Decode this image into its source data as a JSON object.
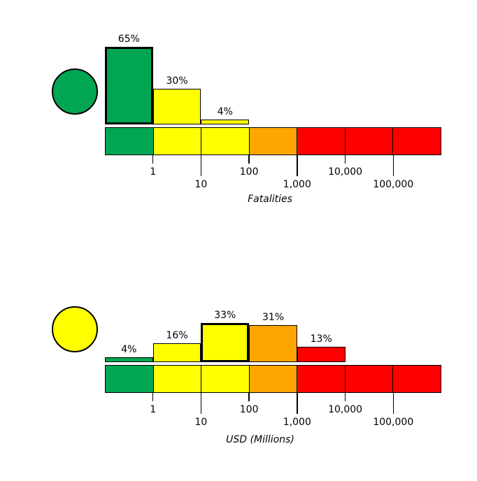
{
  "figure": {
    "background": "#ffffff"
  },
  "colors": {
    "green": "#00a651",
    "yellow": "#ffff00",
    "orange": "#ffa500",
    "red": "#ff0000",
    "outline": "#000000"
  },
  "chart_data": [
    {
      "type": "bar",
      "panel": "fatalities",
      "xlabel": "Fatalities",
      "x_scale": "log10",
      "x_tick_labels": [
        "1",
        "10",
        "100",
        "1,000",
        "10,000",
        "100,000"
      ],
      "bins": [
        "<1",
        "1-10",
        "10-100",
        "100-1,000",
        "1,000-10,000",
        "10,000-100,000",
        ">100,000"
      ],
      "values_percent": [
        65,
        30,
        4,
        0,
        0,
        0,
        0
      ],
      "bar_labels": [
        "65%",
        "30%",
        "4%",
        "",
        "",
        "",
        ""
      ],
      "bar_colors": [
        "green",
        "yellow",
        "yellow",
        null,
        null,
        null,
        null
      ],
      "highlighted_bin": 0,
      "colorbar_colors": [
        "green",
        "yellow",
        "yellow",
        "orange",
        "red",
        "red",
        "red"
      ],
      "indicator_circle_color": "green",
      "legend_position": "none",
      "grid": false
    },
    {
      "type": "bar",
      "panel": "usd",
      "xlabel": "USD (Millions)",
      "x_scale": "log10",
      "x_tick_labels": [
        "1",
        "10",
        "100",
        "1,000",
        "10,000",
        "100,000"
      ],
      "bins": [
        "<1",
        "1-10",
        "10-100",
        "100-1,000",
        "1,000-10,000",
        "10,000-100,000",
        ">100,000"
      ],
      "values_percent": [
        4,
        16,
        33,
        31,
        13,
        0,
        0
      ],
      "bar_labels": [
        "4%",
        "16%",
        "33%",
        "31%",
        "13%",
        "",
        ""
      ],
      "bar_colors": [
        "green",
        "yellow",
        "yellow",
        "orange",
        "red",
        null,
        null
      ],
      "highlighted_bin": 2,
      "colorbar_colors": [
        "green",
        "yellow",
        "yellow",
        "orange",
        "red",
        "red",
        "red"
      ],
      "indicator_circle_color": "yellow",
      "legend_position": "none",
      "grid": false
    }
  ]
}
